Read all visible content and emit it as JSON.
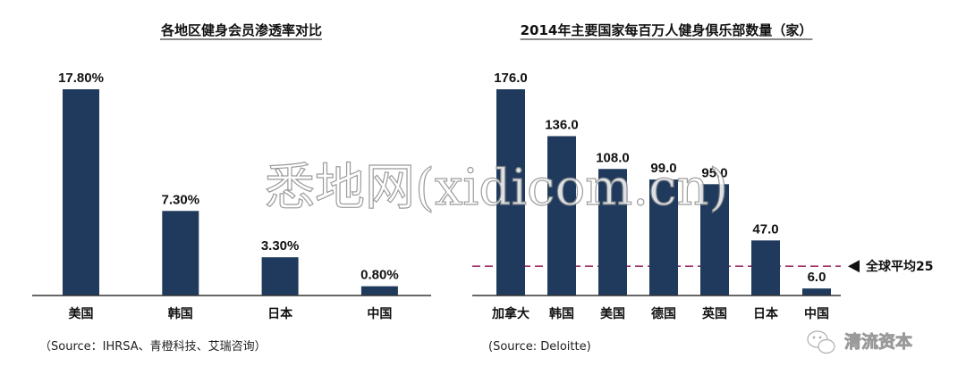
{
  "chart_data": [
    {
      "type": "bar",
      "title": "各地区健身会员渗透率对比",
      "categories": [
        "美国",
        "韩国",
        "日本",
        "中国"
      ],
      "values": [
        17.8,
        7.3,
        3.3,
        0.8
      ],
      "value_labels": [
        "17.80%",
        "7.30%",
        "3.30%",
        "0.80%"
      ],
      "ylim": [
        0,
        20
      ],
      "grid": false,
      "bar_color": "#1f3a5c",
      "source": "（Source：IHRSA、青橙科技、艾瑞咨询）"
    },
    {
      "type": "bar",
      "title": "2014年主要国家每百万人健身俱乐部数量（家）",
      "categories": [
        "加拿大",
        "韩国",
        "美国",
        "德国",
        "英国",
        "日本",
        "中国"
      ],
      "values": [
        176.0,
        136.0,
        108.0,
        99.0,
        95.0,
        47.0,
        6.0
      ],
      "value_labels": [
        "176.0",
        "136.0",
        "108.0",
        "99.0",
        "95.0",
        "47.0",
        "6.0"
      ],
      "ylim": [
        0,
        185
      ],
      "grid": false,
      "bar_color": "#1f3a5c",
      "reference_line": {
        "value": 25,
        "label": "全球平均25",
        "color": "#a0306a"
      },
      "source": "(Source: Deloitte)"
    }
  ],
  "watermark": "悉地网(xidicom.cn)",
  "brand": "清流资本",
  "brand_icon": "wechat-icon"
}
